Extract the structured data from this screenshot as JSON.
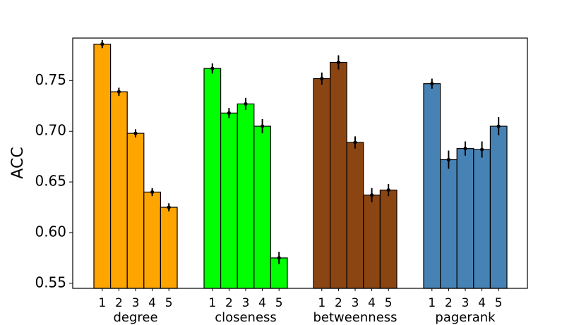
{
  "chart_data": {
    "type": "bar",
    "ylabel": "ACC",
    "ylim": [
      0.545,
      0.792
    ],
    "yticks": [
      "0.55",
      "0.60",
      "0.65",
      "0.70",
      "0.75"
    ],
    "bar_tick_labels": [
      "1",
      "2",
      "3",
      "4",
      "5"
    ],
    "grid": false,
    "legend": "none",
    "groups": [
      {
        "name": "degree",
        "color": "#FFA500",
        "values": [
          0.786,
          0.739,
          0.698,
          0.64,
          0.625
        ],
        "errors": [
          0.004,
          0.004,
          0.004,
          0.004,
          0.004
        ]
      },
      {
        "name": "closeness",
        "color": "#00FF00",
        "values": [
          0.762,
          0.718,
          0.727,
          0.705,
          0.575
        ],
        "errors": [
          0.005,
          0.005,
          0.006,
          0.007,
          0.006
        ]
      },
      {
        "name": "betweenness",
        "color": "#8B4513",
        "values": [
          0.752,
          0.768,
          0.689,
          0.637,
          0.642
        ],
        "errors": [
          0.006,
          0.007,
          0.006,
          0.007,
          0.006
        ]
      },
      {
        "name": "pagerank",
        "color": "#4682B4",
        "values": [
          0.747,
          0.672,
          0.683,
          0.682,
          0.705
        ],
        "errors": [
          0.005,
          0.009,
          0.007,
          0.008,
          0.009
        ]
      }
    ]
  }
}
